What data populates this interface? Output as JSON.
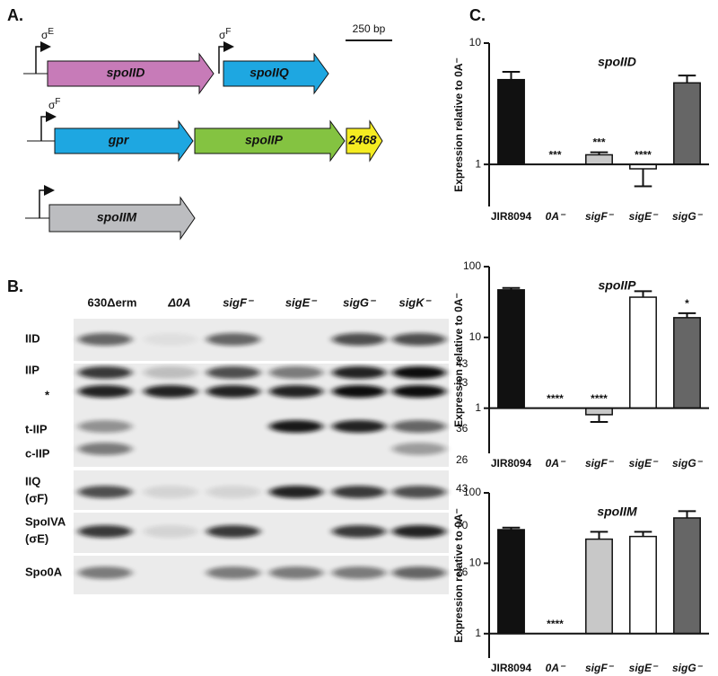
{
  "panel_a": {
    "label": "A.",
    "scale_bar": "250 bp",
    "promoters": [
      {
        "symbol": "σ",
        "superscript": "E"
      },
      {
        "symbol": "σ",
        "superscript": "F"
      },
      {
        "symbol": "σ",
        "superscript": "F"
      }
    ],
    "genes": [
      "spoIID",
      "spoIIQ",
      "gpr",
      "spoIIP",
      "2468",
      "spoIIM"
    ]
  },
  "panel_b": {
    "label": "B.",
    "lanes": [
      "630Δerm",
      "Δ0A",
      "sigF⁻",
      "sigE⁻",
      "sigG⁻",
      "sigK⁻"
    ],
    "rows": [
      "IID",
      "IIP",
      "*",
      "t-IIP",
      "c-IIP",
      "IIQ",
      "(σF)",
      "SpoIVA",
      "(σE)",
      "Spo0A"
    ],
    "markers": [
      "43",
      "43",
      "36",
      "26",
      "43",
      "70",
      "26"
    ]
  },
  "panel_c": {
    "label": "C."
  },
  "chart_data": [
    {
      "type": "bar",
      "title": "spoIID",
      "ylabel": "Expression relative to 0A⁻",
      "categories": [
        "JIR8094",
        "0A⁻",
        "sigF⁻",
        "sigE⁻",
        "sigG⁻"
      ],
      "values": [
        5.0,
        1,
        1.2,
        0.92,
        4.7
      ],
      "errors": [
        0.8,
        null,
        0.06,
        0.26,
        0.7
      ],
      "annotations": [
        null,
        "***",
        "***",
        "****",
        null
      ],
      "colors": [
        "#111111",
        "#ffffff",
        "#c8c8c8",
        "#ffffff",
        "#666666"
      ],
      "log_scale": true,
      "ylim": [
        0.45,
        10
      ],
      "yticks": [
        1,
        10
      ]
    },
    {
      "type": "bar",
      "title": "spoIIP",
      "ylabel": "Expression relative to 0A⁻",
      "categories": [
        "JIR8094",
        "0A⁻",
        "sigF⁻",
        "sigE⁻",
        "sigG⁻"
      ],
      "values": [
        47,
        1,
        0.81,
        37,
        19
      ],
      "errors": [
        3,
        null,
        0.17,
        8,
        3
      ],
      "annotations": [
        null,
        "****",
        "****",
        null,
        "*"
      ],
      "colors": [
        "#111111",
        "#ffffff",
        "#c8c8c8",
        "#ffffff",
        "#666666"
      ],
      "log_scale": true,
      "ylim": [
        0.23,
        100
      ],
      "yticks": [
        1,
        10,
        100
      ]
    },
    {
      "type": "bar",
      "title": "spoIIM",
      "ylabel": "Expression relative to 0A⁻",
      "categories": [
        "JIR8094",
        "0A⁻",
        "sigF⁻",
        "sigE⁻",
        "sigG⁻"
      ],
      "values": [
        30,
        1,
        22,
        24,
        44
      ],
      "errors": [
        2,
        null,
        6,
        4,
        11
      ],
      "annotations": [
        null,
        "****",
        null,
        null,
        null
      ],
      "colors": [
        "#111111",
        "#ffffff",
        "#c8c8c8",
        "#ffffff",
        "#666666"
      ],
      "log_scale": true,
      "ylim": [
        0.45,
        100
      ],
      "yticks": [
        1,
        10,
        100
      ]
    }
  ]
}
